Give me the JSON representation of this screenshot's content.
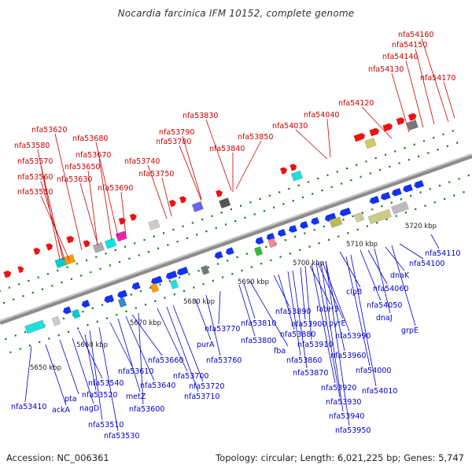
{
  "title": "Nocardia farcinica IFM 10152, complete genome",
  "footer": {
    "accession": "Accession: NC_006361",
    "stats": "Topology: circular; Length: 6,021,225 bp; Genes: 5,747"
  },
  "colors": {
    "forward_label": "#cc0000",
    "reverse_label": "#0000cc",
    "backbone": "#8c8c8c",
    "tick": "#1a7a1a"
  },
  "kbp_ticks": [
    "5650 kbp",
    "5660 kbp",
    "5670 kbp",
    "5680 kbp",
    "5690 kbp",
    "5700 kbp",
    "5710 kbp",
    "5720 kbp"
  ],
  "forward_genes": [
    "nfa53550",
    "nfa53560",
    "nfa53570",
    "nfa53580",
    "nfa53620",
    "nfa53630",
    "nfa53650",
    "nfa53670",
    "nfa53680",
    "nfa53690",
    "nfa53740",
    "nfa53750",
    "nfa53780",
    "nfa53790",
    "nfa53830",
    "nfa53840",
    "nfa53850",
    "nfa54030",
    "nfa54040",
    "nfa54120",
    "nfa54130",
    "nfa54140",
    "nfa54150",
    "nfa54160",
    "nfa54170"
  ],
  "reverse_genes": [
    "nfa53410",
    "ackA",
    "pta",
    "nagD",
    "nfa53540",
    "nfa53520",
    "nfa53510",
    "nfa53530",
    "nfa53610",
    "metZ",
    "nfa53660",
    "nfa53640",
    "nfa53600",
    "nfa53700",
    "nfa53720",
    "nfa53710",
    "purA",
    "nfa53760",
    "nfa53770",
    "nfa53810",
    "nfa53800",
    "fba",
    "nfa53890",
    "nfa53880",
    "nfa53860",
    "nfa53870",
    "fabH3",
    "nfa53900",
    "nfa53910",
    "pyrE",
    "nfa53990",
    "nfa53960",
    "nfa53920",
    "nfa53930",
    "nfa53940",
    "nfa53950",
    "nfa54000",
    "nfa54010",
    "clpB",
    "nfa54060",
    "nfa54050",
    "dnaJ",
    "grpE",
    "dnaK",
    "nfa54100",
    "nfa54110"
  ]
}
